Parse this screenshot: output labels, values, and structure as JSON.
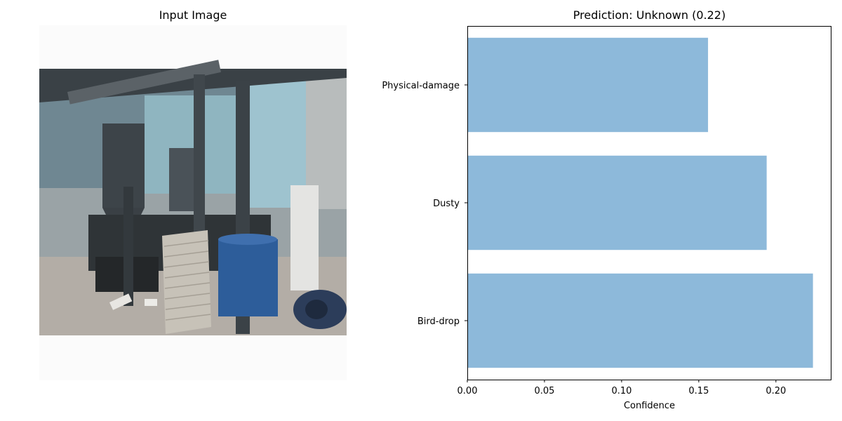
{
  "left_panel": {
    "title": "Input Image"
  },
  "right_panel": {
    "title": "Prediction: Unknown (0.22)"
  },
  "chart_data": {
    "type": "bar",
    "orientation": "horizontal",
    "title": "Prediction: Unknown (0.22)",
    "xlabel": "Confidence",
    "ylabel": "",
    "categories": [
      "Bird-drop",
      "Dusty",
      "Physical-damage"
    ],
    "values": [
      0.224,
      0.194,
      0.156
    ],
    "xlim": [
      0,
      0.236
    ],
    "xticks": [
      "0.00",
      "0.05",
      "0.10",
      "0.15",
      "0.20"
    ],
    "bar_color": "#8db9da",
    "grid": false
  }
}
